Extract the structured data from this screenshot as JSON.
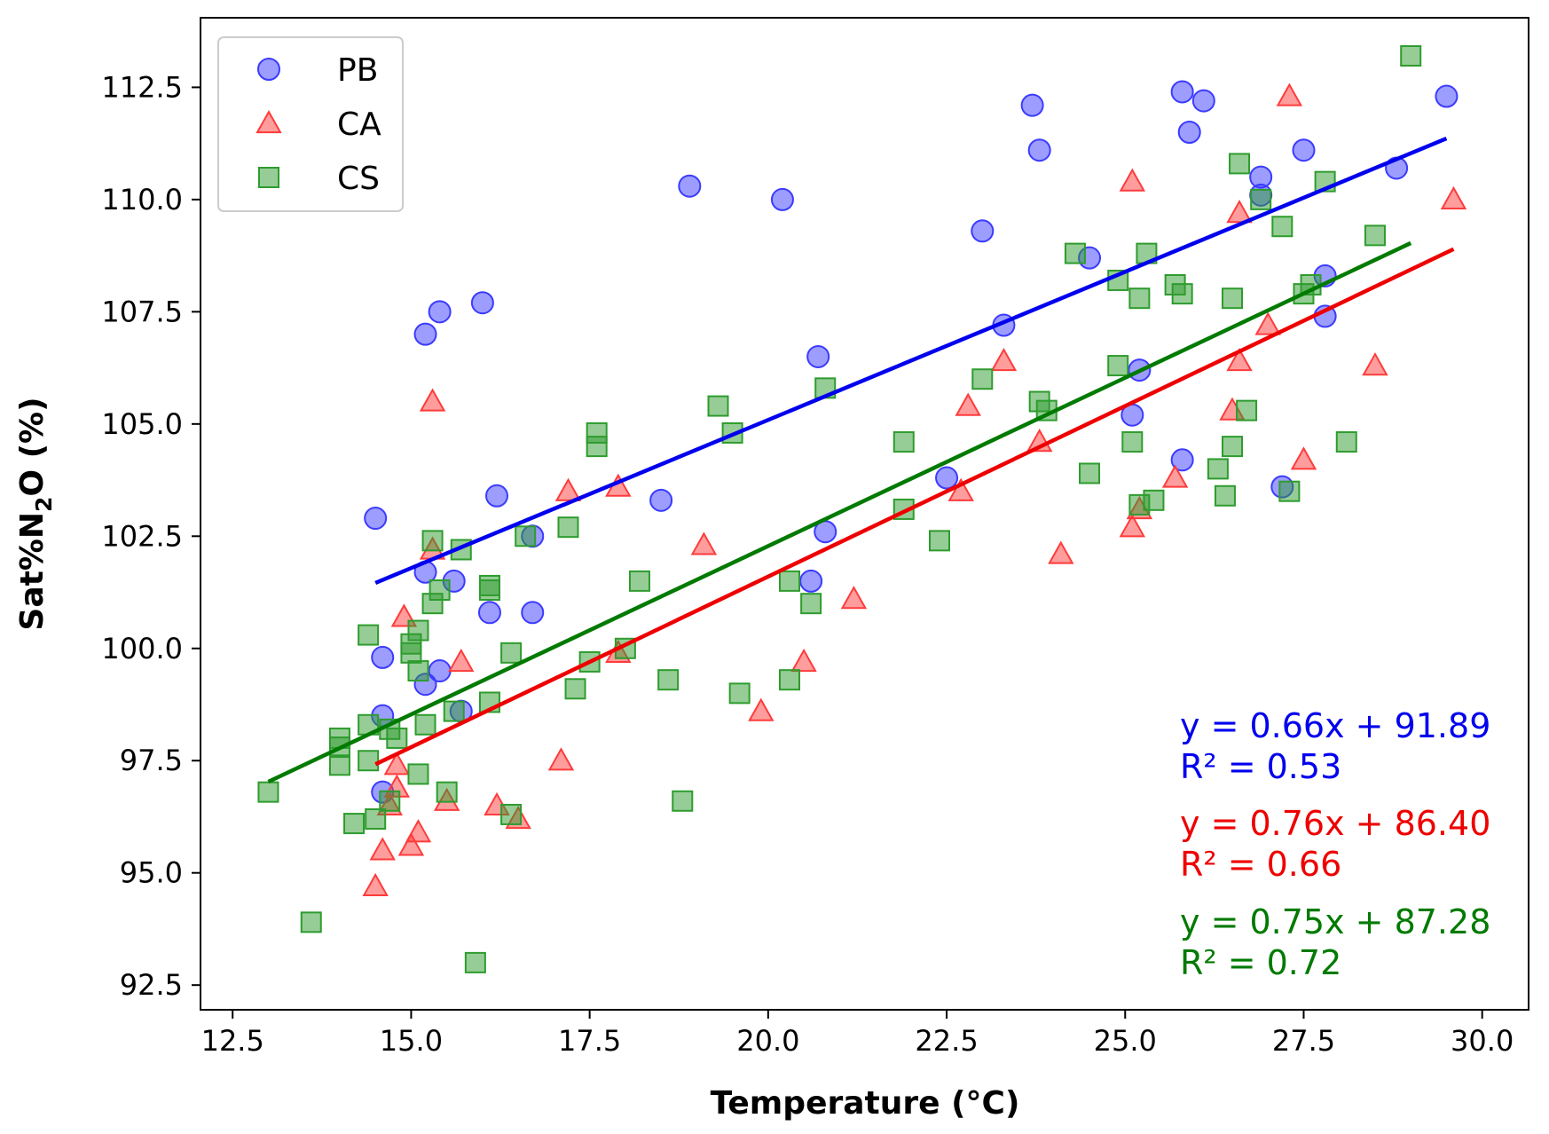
{
  "chart_data": {
    "type": "scatter",
    "title": "",
    "xlabel": "Temperature (°C)",
    "ylabel_parts": {
      "pre": "Sat%N",
      "sub": "2",
      "post": "O (%)"
    },
    "xlim": [
      12.05,
      30.65
    ],
    "ylim": [
      91.95,
      114.05
    ],
    "xticks": [
      12.5,
      15.0,
      17.5,
      20.0,
      22.5,
      25.0,
      27.5,
      30.0
    ],
    "xtick_labels": [
      "12.5",
      "15.0",
      "17.5",
      "20.0",
      "22.5",
      "25.0",
      "27.5",
      "30.0"
    ],
    "yticks": [
      92.5,
      95.0,
      97.5,
      100.0,
      102.5,
      105.0,
      107.5,
      110.0,
      112.5
    ],
    "ytick_labels": [
      "92.5",
      "95.0",
      "97.5",
      "100.0",
      "102.5",
      "105.0",
      "107.5",
      "110.0",
      "112.5"
    ],
    "grid": false,
    "legend_position": "top-left",
    "series": [
      {
        "name": "PB",
        "marker": "circle",
        "color": "#3b3bff",
        "line_color": "#0000ee",
        "fit": {
          "slope": 0.66,
          "intercept": 91.89,
          "x_range": [
            14.5,
            29.5
          ]
        },
        "equation": "y = 0.66x + 91.89",
        "r2": "R² = 0.53",
        "points": [
          [
            14.5,
            102.9
          ],
          [
            14.6,
            99.8
          ],
          [
            14.6,
            98.5
          ],
          [
            14.6,
            96.8
          ],
          [
            15.2,
            101.7
          ],
          [
            15.2,
            99.2
          ],
          [
            15.2,
            107.0
          ],
          [
            15.4,
            107.5
          ],
          [
            15.4,
            99.5
          ],
          [
            15.6,
            101.5
          ],
          [
            15.7,
            98.6
          ],
          [
            16.0,
            107.7
          ],
          [
            16.1,
            100.8
          ],
          [
            16.2,
            103.4
          ],
          [
            16.7,
            102.5
          ],
          [
            16.7,
            100.8
          ],
          [
            18.5,
            103.3
          ],
          [
            18.9,
            110.3
          ],
          [
            20.2,
            110.0
          ],
          [
            20.6,
            101.5
          ],
          [
            20.7,
            106.5
          ],
          [
            20.8,
            102.6
          ],
          [
            22.5,
            103.8
          ],
          [
            23.0,
            109.3
          ],
          [
            23.3,
            107.2
          ],
          [
            23.7,
            112.1
          ],
          [
            23.8,
            111.1
          ],
          [
            24.5,
            108.7
          ],
          [
            25.1,
            105.2
          ],
          [
            25.2,
            106.2
          ],
          [
            25.8,
            112.4
          ],
          [
            25.8,
            104.2
          ],
          [
            25.9,
            111.5
          ],
          [
            26.1,
            112.2
          ],
          [
            26.9,
            110.5
          ],
          [
            26.9,
            110.1
          ],
          [
            27.2,
            103.6
          ],
          [
            27.5,
            111.1
          ],
          [
            27.8,
            108.3
          ],
          [
            27.8,
            107.4
          ],
          [
            28.8,
            110.7
          ],
          [
            29.5,
            112.3
          ]
        ]
      },
      {
        "name": "CA",
        "marker": "triangle",
        "color": "#ff3b3b",
        "line_color": "#ee0000",
        "fit": {
          "slope": 0.76,
          "intercept": 86.4,
          "x_range": [
            14.5,
            29.6
          ]
        },
        "equation": "y = 0.76x + 86.40",
        "r2": "R² = 0.66",
        "points": [
          [
            14.5,
            94.7
          ],
          [
            14.6,
            95.5
          ],
          [
            14.7,
            96.5
          ],
          [
            14.8,
            97.4
          ],
          [
            14.8,
            96.9
          ],
          [
            14.9,
            100.7
          ],
          [
            15.0,
            95.6
          ],
          [
            15.1,
            95.9
          ],
          [
            15.3,
            102.2
          ],
          [
            15.3,
            105.5
          ],
          [
            15.5,
            96.6
          ],
          [
            15.7,
            99.7
          ],
          [
            16.2,
            96.5
          ],
          [
            16.5,
            96.2
          ],
          [
            17.1,
            97.5
          ],
          [
            17.2,
            103.5
          ],
          [
            17.9,
            103.6
          ],
          [
            17.9,
            99.9
          ],
          [
            19.1,
            102.3
          ],
          [
            19.9,
            98.6
          ],
          [
            20.5,
            99.7
          ],
          [
            21.2,
            101.1
          ],
          [
            22.7,
            103.5
          ],
          [
            22.8,
            105.4
          ],
          [
            23.3,
            106.4
          ],
          [
            23.8,
            104.6
          ],
          [
            24.1,
            102.1
          ],
          [
            25.1,
            102.7
          ],
          [
            25.1,
            110.4
          ],
          [
            25.2,
            103.1
          ],
          [
            25.7,
            103.8
          ],
          [
            26.5,
            105.3
          ],
          [
            26.6,
            109.7
          ],
          [
            26.6,
            106.4
          ],
          [
            27.0,
            107.2
          ],
          [
            27.3,
            112.3
          ],
          [
            27.5,
            104.2
          ],
          [
            28.5,
            106.3
          ],
          [
            29.6,
            110.0
          ]
        ]
      },
      {
        "name": "CS",
        "marker": "square",
        "color": "#2e9c2e",
        "line_color": "#007a00",
        "fit": {
          "slope": 0.75,
          "intercept": 87.28,
          "x_range": [
            13.0,
            29.0
          ]
        },
        "equation": "y = 0.75x + 87.28",
        "r2": "R² = 0.72",
        "points": [
          [
            13.0,
            96.8
          ],
          [
            13.6,
            93.9
          ],
          [
            14.0,
            98.0
          ],
          [
            14.0,
            97.8
          ],
          [
            14.0,
            97.4
          ],
          [
            14.2,
            96.1
          ],
          [
            14.4,
            100.3
          ],
          [
            14.4,
            98.3
          ],
          [
            14.4,
            97.5
          ],
          [
            14.5,
            96.2
          ],
          [
            14.7,
            96.6
          ],
          [
            14.7,
            98.2
          ],
          [
            14.8,
            98.0
          ],
          [
            15.0,
            100.1
          ],
          [
            15.0,
            99.9
          ],
          [
            15.1,
            100.4
          ],
          [
            15.1,
            99.5
          ],
          [
            15.1,
            97.2
          ],
          [
            15.2,
            98.3
          ],
          [
            15.3,
            102.4
          ],
          [
            15.3,
            101.0
          ],
          [
            15.4,
            101.3
          ],
          [
            15.5,
            96.8
          ],
          [
            15.6,
            98.6
          ],
          [
            15.7,
            102.2
          ],
          [
            15.9,
            93.0
          ],
          [
            16.1,
            101.4
          ],
          [
            16.1,
            101.3
          ],
          [
            16.1,
            98.8
          ],
          [
            16.4,
            99.9
          ],
          [
            16.4,
            96.3
          ],
          [
            16.6,
            102.5
          ],
          [
            17.2,
            102.7
          ],
          [
            17.3,
            99.1
          ],
          [
            17.5,
            99.7
          ],
          [
            17.6,
            104.8
          ],
          [
            17.6,
            104.5
          ],
          [
            18.0,
            100.0
          ],
          [
            18.2,
            101.5
          ],
          [
            18.6,
            99.3
          ],
          [
            18.8,
            96.6
          ],
          [
            19.3,
            105.4
          ],
          [
            19.5,
            104.8
          ],
          [
            19.6,
            99.0
          ],
          [
            20.3,
            101.5
          ],
          [
            20.3,
            99.3
          ],
          [
            20.6,
            101.0
          ],
          [
            20.8,
            105.8
          ],
          [
            21.9,
            103.1
          ],
          [
            21.9,
            104.6
          ],
          [
            22.4,
            102.4
          ],
          [
            23.0,
            106.0
          ],
          [
            23.8,
            105.5
          ],
          [
            23.9,
            105.3
          ],
          [
            24.3,
            108.8
          ],
          [
            24.5,
            103.9
          ],
          [
            24.9,
            108.2
          ],
          [
            24.9,
            106.3
          ],
          [
            25.1,
            104.6
          ],
          [
            25.2,
            103.2
          ],
          [
            25.2,
            107.8
          ],
          [
            25.3,
            108.8
          ],
          [
            25.4,
            103.3
          ],
          [
            25.7,
            108.1
          ],
          [
            25.8,
            107.9
          ],
          [
            26.3,
            104.0
          ],
          [
            26.4,
            103.4
          ],
          [
            26.5,
            104.5
          ],
          [
            26.5,
            107.8
          ],
          [
            26.6,
            110.8
          ],
          [
            26.7,
            105.3
          ],
          [
            26.9,
            110.0
          ],
          [
            27.2,
            109.4
          ],
          [
            27.3,
            103.5
          ],
          [
            27.5,
            107.9
          ],
          [
            27.6,
            108.1
          ],
          [
            27.8,
            110.4
          ],
          [
            28.1,
            104.6
          ],
          [
            28.5,
            109.2
          ],
          [
            29.0,
            113.2
          ]
        ]
      }
    ]
  }
}
